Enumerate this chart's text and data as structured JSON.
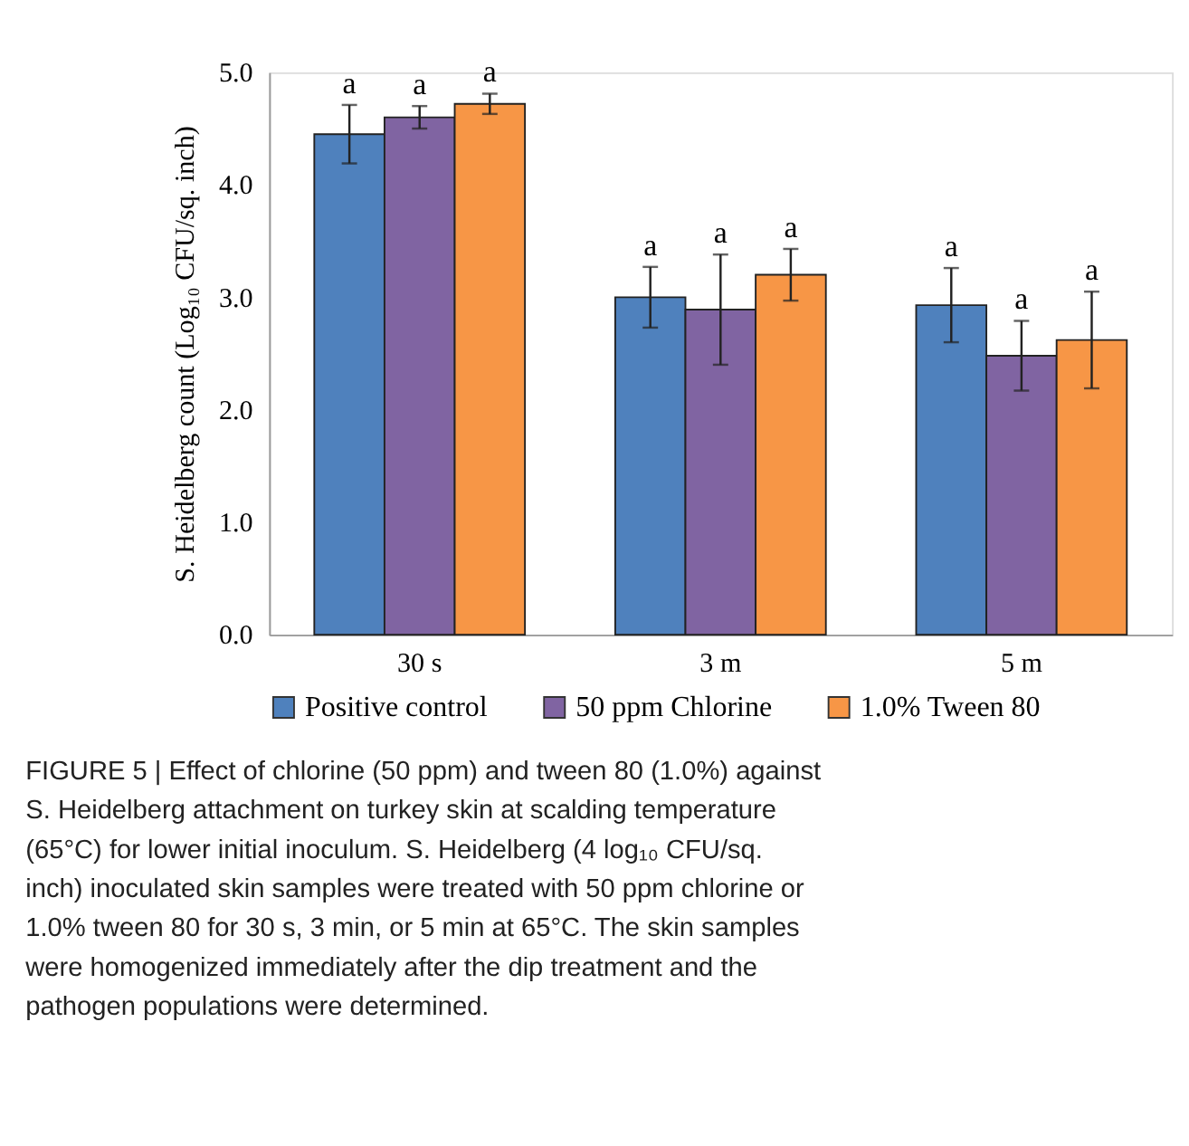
{
  "chart_data": {
    "type": "bar",
    "categories": [
      "30 s",
      "3 m",
      "5 m"
    ],
    "ylabel": "S. Heidelberg count (Log₁₀ CFU/sq. inch)",
    "ylim": [
      0,
      5
    ],
    "yticks": [
      {
        "value": 0,
        "label": "0.0"
      },
      {
        "value": 1,
        "label": "1.0"
      },
      {
        "value": 2,
        "label": "2.0"
      },
      {
        "value": 3,
        "label": "3.0"
      },
      {
        "value": 4,
        "label": "4.0"
      },
      {
        "value": 5,
        "label": "5.0"
      }
    ],
    "series": [
      {
        "name": "Positive control",
        "color": "#4f81bd",
        "values": [
          4.45,
          3.0,
          2.93
        ],
        "errors": [
          [
            4.19,
            4.71
          ],
          [
            2.73,
            3.27
          ],
          [
            2.6,
            3.26
          ]
        ]
      },
      {
        "name": "50 ppm Chlorine",
        "color": "#8064a2",
        "values": [
          4.6,
          2.89,
          2.48
        ],
        "errors": [
          [
            4.5,
            4.7
          ],
          [
            2.4,
            3.38
          ],
          [
            2.17,
            2.79
          ]
        ]
      },
      {
        "name": "1.0% Tween 80",
        "color": "#f79646",
        "values": [
          4.72,
          3.2,
          2.62
        ],
        "errors": [
          [
            4.63,
            4.81
          ],
          [
            2.97,
            3.43
          ],
          [
            2.19,
            3.05
          ]
        ]
      }
    ],
    "annotations": [
      "a",
      "a",
      "a",
      "a",
      "a",
      "a",
      "a",
      "a",
      "a",
      "FIGURE 5 | Effect of chlorine (50 ppm) and tween 80 (1.0%) against S. Heidelberg attachment on turkey skin at scalding temperature (65°C) for lower initial inoculum. S. Heidelberg (4 log₁₀ CFU/sq. inch) inoculated skin samples were treated with 50 ppm chlorine or 1.0% tween 80 for 30 s, 3 min, or 5 min at 65°C. The skin samples were homogenized immediately after the dip treatment and the pathogen populations were determined."
    ],
    "grid": false,
    "legend": "bottom"
  }
}
